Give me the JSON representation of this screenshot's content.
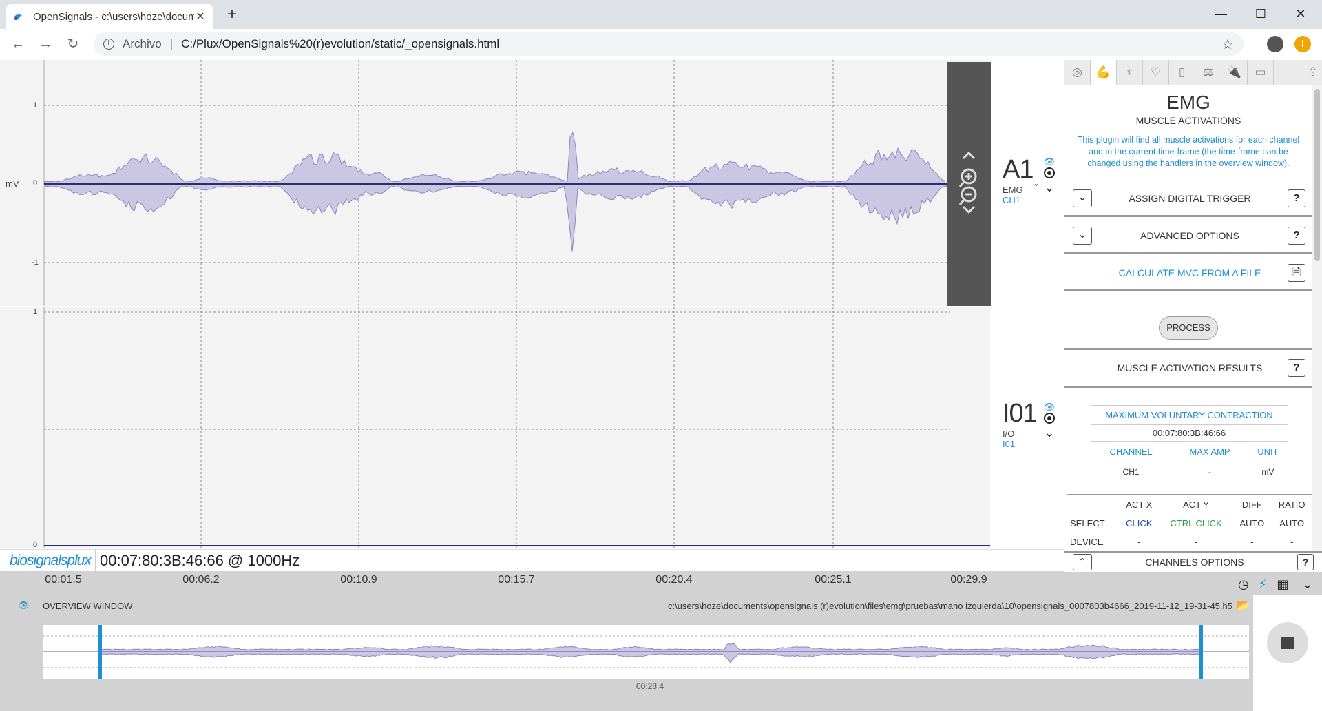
{
  "browser": {
    "tab_title": "OpenSignals - c:\\users\\hoze\\documents",
    "tab_close": "✕",
    "new_tab": "+",
    "scheme_label": "Archivo",
    "separator": "|",
    "url": "C:/Plux/OpenSignals%20(r)evolution/static/_opensignals.html",
    "window_controls": {
      "minimize": "—",
      "maximize": "☐",
      "close": "✕"
    }
  },
  "plot": {
    "channels": [
      {
        "big": "A1",
        "type": "EMG",
        "sub": "CH1",
        "y_unit": "mV",
        "y_ticks": [
          "1",
          "0",
          "-1"
        ]
      },
      {
        "big": "I01",
        "type": "I/O",
        "sub": "I01",
        "y_ticks": [
          "1",
          "0"
        ]
      }
    ],
    "status_timestamp": "00:07:80:3B:46:66 @ 1000Hz",
    "logo": "biosignalsplux",
    "time_ticks": [
      "00:01.5",
      "00:06.2",
      "00:10.9",
      "00:15.7",
      "00:20.4",
      "00:25.1",
      "00:29.9"
    ],
    "line_color": "#2e2a6e",
    "envelope_color": "#cbc7e3"
  },
  "overview": {
    "title": "OVERVIEW WINDOW",
    "file_path": "c:\\users\\hoze\\documents\\opensignals (r)evolution\\files\\emg\\pruebas\\mano izquierda\\10\\opensignals_0007803b4666_2019-11-12_19-31-45.h5",
    "center_time": "00:28.4",
    "handle_color": "#1e8fd1"
  },
  "side": {
    "tab_icons": [
      "fingerprint-icon",
      "muscle-icon",
      "lungs-icon",
      "heart-icon",
      "eda-icon",
      "weight-icon",
      "plug-icon",
      "video-icon"
    ],
    "title": "EMG",
    "subtitle": "MUSCLE ACTIVATIONS",
    "description": "This plugin will find all muscle activations for each channel and in the current time-frame (the time-frame can be changed using the handlers in the overview window).",
    "assign_trigger": "ASSIGN DIGITAL TRIGGER",
    "advanced_options": "ADVANCED OPTIONS",
    "calculate_mvc": "CALCULATE MVC FROM A FILE",
    "process": "PROCESS",
    "results": "MUSCLE ACTIVATION RESULTS",
    "help": "?",
    "mvc": {
      "header": "MAXIMUM VOLUNTARY CONTRACTION",
      "time": "00:07:80:3B:46:66",
      "columns": [
        "CHANNEL",
        "MAX AMP",
        "UNIT"
      ],
      "row": [
        "CH1",
        "-",
        "mV"
      ]
    },
    "act_table": {
      "columns": [
        "",
        "ACT X",
        "ACT Y",
        "DIFF",
        "RATIO"
      ],
      "select_row": [
        "SELECT",
        "CLICK",
        "CTRL CLICK",
        "AUTO",
        "AUTO"
      ],
      "device_row": [
        "DEVICE",
        "-",
        "-",
        "-",
        "-"
      ]
    },
    "channels_options": "CHANNELS OPTIONS"
  }
}
